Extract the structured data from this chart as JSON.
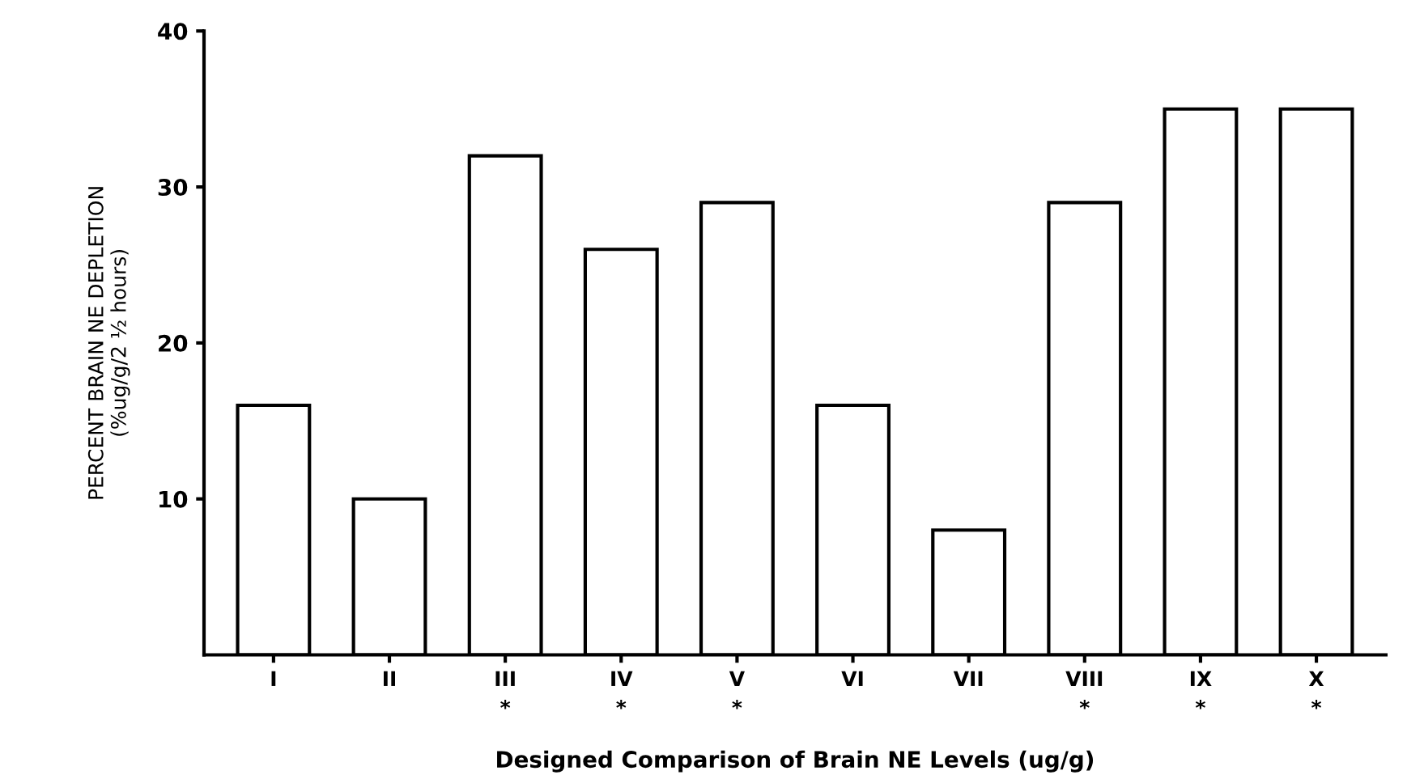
{
  "chart_data": {
    "type": "bar",
    "xlabel": "Designed Comparison of Brain NE Levels (ug/g)",
    "ylabel": "PERCENT BRAIN NE DEPLETION\n(%ug/g/2 ½ hours)",
    "categories": [
      "I",
      "II",
      "III\n*",
      "IV\n*",
      "V\n*",
      "VI",
      "VII",
      "VIII\n*",
      "IX\n*",
      "X\n*"
    ],
    "values": [
      16,
      10,
      32,
      26,
      29,
      16,
      8,
      29,
      35,
      35
    ],
    "color": "#ffffff",
    "ylim": [
      0,
      40
    ],
    "yticks": [
      10,
      20,
      30,
      40
    ],
    "grid": false
  }
}
